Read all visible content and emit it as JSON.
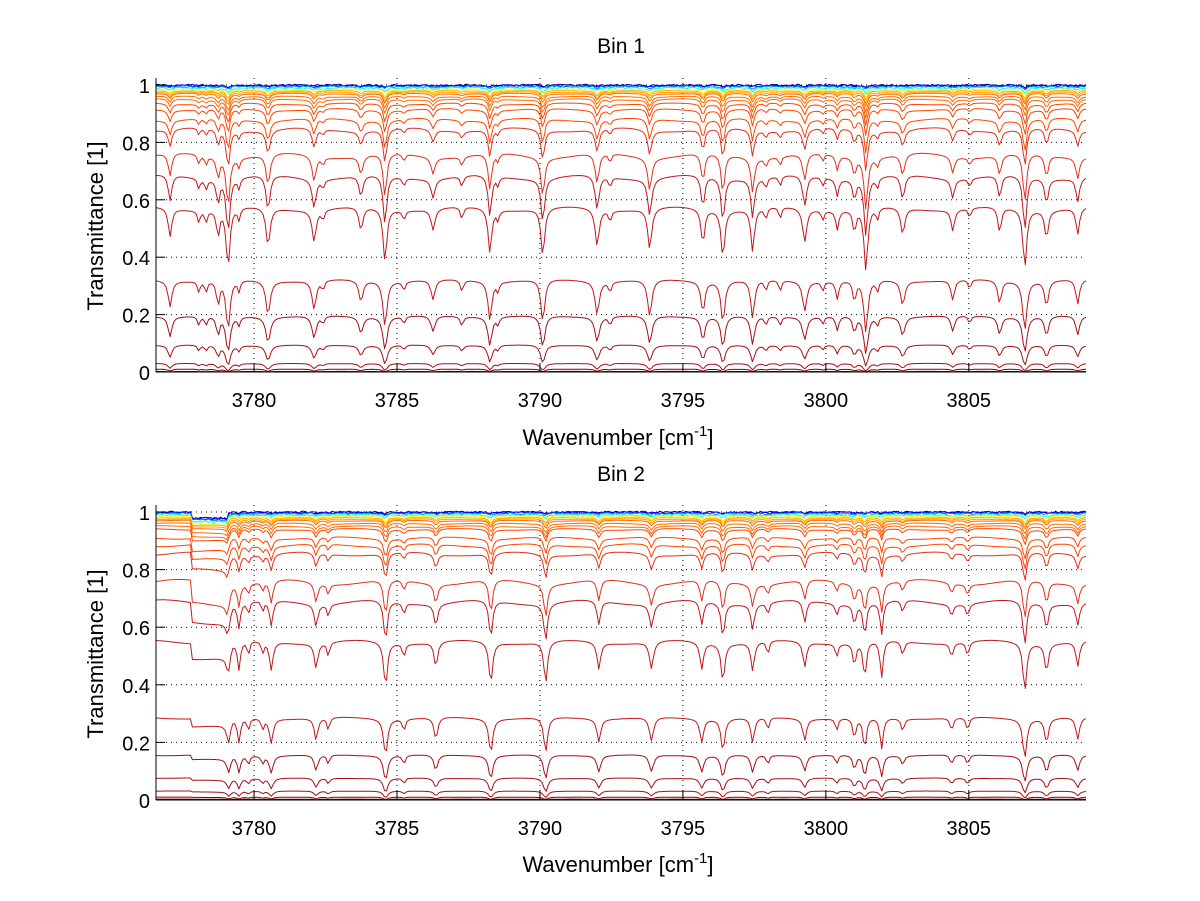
{
  "figure": {
    "colors": {
      "background": "#ffffff",
      "axis": "#000000",
      "colormap": [
        "#00008f",
        "#0000ff",
        "#0080ff",
        "#00ffff",
        "#ffff00",
        "#ffa500",
        "#ff6a00",
        "#ff4500",
        "#e0301e",
        "#c0171b",
        "#a50f15",
        "#800000"
      ]
    }
  },
  "chart_data": [
    {
      "type": "line",
      "title": "Bin 1",
      "xlabel": "Wavenumber [cm",
      "xlabel_superscript": "-1",
      "xlabel_suffix": "]",
      "ylabel": "Transmittance [1]",
      "xlim": [
        3776.57,
        3809.1
      ],
      "ylim": [
        0,
        1.02
      ],
      "xticks": [
        3780,
        3785,
        3790,
        3795,
        3800,
        3805
      ],
      "xtick_labels": [
        "3780",
        "3785",
        "3790",
        "3795",
        "3800",
        "3805"
      ],
      "yticks": [
        0,
        0.2,
        0.4,
        0.6,
        0.8,
        1
      ],
      "ytick_labels": [
        "0",
        "0.2",
        "0.4",
        "0.6",
        "0.8",
        "1"
      ],
      "grid": true,
      "legend": "none",
      "series_model": "T = continuum * exp(-k * sum_j strength_j * lorentz(nu; center_j, width_j)), k = (-ln continuum)^0.8",
      "continuum_levels": [
        1.0,
        0.998,
        0.995,
        0.99,
        0.985,
        0.98,
        0.975,
        0.97,
        0.96,
        0.95,
        0.935,
        0.915,
        0.88,
        0.845,
        0.755,
        0.68,
        0.57,
        0.32,
        0.195,
        0.094,
        0.03,
        0.01,
        0.002
      ],
      "absorption_lines": [
        {
          "center": 3777.06,
          "strength": 0.3,
          "width": 0.07
        },
        {
          "center": 3778.07,
          "strength": 0.12,
          "width": 0.05
        },
        {
          "center": 3778.32,
          "strength": 0.12,
          "width": 0.05
        },
        {
          "center": 3778.74,
          "strength": 0.28,
          "width": 0.06
        },
        {
          "center": 3779.09,
          "strength": 0.7,
          "width": 0.07
        },
        {
          "center": 3779.47,
          "strength": 0.12,
          "width": 0.05
        },
        {
          "center": 3780.49,
          "strength": 0.42,
          "width": 0.08
        },
        {
          "center": 3782.1,
          "strength": 0.34,
          "width": 0.08
        },
        {
          "center": 3782.41,
          "strength": 0.1,
          "width": 0.05
        },
        {
          "center": 3783.74,
          "strength": 0.24,
          "width": 0.08
        },
        {
          "center": 3784.58,
          "strength": 0.62,
          "width": 0.07
        },
        {
          "center": 3785.24,
          "strength": 0.1,
          "width": 0.05
        },
        {
          "center": 3786.26,
          "strength": 0.22,
          "width": 0.08
        },
        {
          "center": 3787.27,
          "strength": 0.12,
          "width": 0.06
        },
        {
          "center": 3788.25,
          "strength": 0.5,
          "width": 0.07
        },
        {
          "center": 3788.53,
          "strength": 0.1,
          "width": 0.05
        },
        {
          "center": 3790.1,
          "strength": 0.55,
          "width": 0.07
        },
        {
          "center": 3792.0,
          "strength": 0.4,
          "width": 0.08
        },
        {
          "center": 3792.45,
          "strength": 0.12,
          "width": 0.05
        },
        {
          "center": 3793.84,
          "strength": 0.45,
          "width": 0.08
        },
        {
          "center": 3795.7,
          "strength": 0.38,
          "width": 0.07
        },
        {
          "center": 3796.4,
          "strength": 0.55,
          "width": 0.07
        },
        {
          "center": 3797.44,
          "strength": 0.48,
          "width": 0.07
        },
        {
          "center": 3797.9,
          "strength": 0.12,
          "width": 0.05
        },
        {
          "center": 3798.4,
          "strength": 0.12,
          "width": 0.05
        },
        {
          "center": 3799.26,
          "strength": 0.36,
          "width": 0.08
        },
        {
          "center": 3799.89,
          "strength": 0.1,
          "width": 0.05
        },
        {
          "center": 3800.4,
          "strength": 0.2,
          "width": 0.06
        },
        {
          "center": 3801.0,
          "strength": 0.24,
          "width": 0.06
        },
        {
          "center": 3801.4,
          "strength": 0.75,
          "width": 0.07
        },
        {
          "center": 3801.8,
          "strength": 0.12,
          "width": 0.05
        },
        {
          "center": 3802.69,
          "strength": 0.28,
          "width": 0.08
        },
        {
          "center": 3804.44,
          "strength": 0.22,
          "width": 0.07
        },
        {
          "center": 3805.03,
          "strength": 0.1,
          "width": 0.05
        },
        {
          "center": 3806.08,
          "strength": 0.26,
          "width": 0.07
        },
        {
          "center": 3806.96,
          "strength": 0.7,
          "width": 0.07
        },
        {
          "center": 3807.72,
          "strength": 0.3,
          "width": 0.07
        },
        {
          "center": 3808.81,
          "strength": 0.28,
          "width": 0.07
        }
      ],
      "step_ranges": []
    },
    {
      "type": "line",
      "title": "Bin 2",
      "xlabel": "Wavenumber [cm",
      "xlabel_superscript": "-1",
      "xlabel_suffix": "]",
      "ylabel": "Transmittance [1]",
      "xlim": [
        3776.57,
        3809.1
      ],
      "ylim": [
        0,
        1.02
      ],
      "xticks": [
        3780,
        3785,
        3790,
        3795,
        3800,
        3805
      ],
      "xtick_labels": [
        "3780",
        "3785",
        "3790",
        "3795",
        "3800",
        "3805"
      ],
      "yticks": [
        0,
        0.2,
        0.4,
        0.6,
        0.8,
        1
      ],
      "ytick_labels": [
        "0",
        "0.2",
        "0.4",
        "0.6",
        "0.8",
        "1"
      ],
      "grid": true,
      "legend": "none",
      "series_model": "T = continuum * exp(-k * sum_j strength_j * lorentz(nu; center_j, width_j)), k = (-ln continuum)^0.8",
      "continuum_levels": [
        1.0,
        0.998,
        0.995,
        0.99,
        0.985,
        0.98,
        0.975,
        0.97,
        0.96,
        0.95,
        0.94,
        0.91,
        0.885,
        0.855,
        0.757,
        0.687,
        0.549,
        0.285,
        0.156,
        0.076,
        0.031,
        0.01,
        0.003
      ],
      "absorption_lines": [
        {
          "center": 3779.12,
          "strength": 0.3,
          "width": 0.06
        },
        {
          "center": 3779.47,
          "strength": 0.3,
          "width": 0.06
        },
        {
          "center": 3779.8,
          "strength": 0.14,
          "width": 0.05
        },
        {
          "center": 3780.3,
          "strength": 0.12,
          "width": 0.05
        },
        {
          "center": 3780.6,
          "strength": 0.3,
          "width": 0.07
        },
        {
          "center": 3782.17,
          "strength": 0.26,
          "width": 0.07
        },
        {
          "center": 3782.6,
          "strength": 0.14,
          "width": 0.05
        },
        {
          "center": 3784.6,
          "strength": 0.5,
          "width": 0.07
        },
        {
          "center": 3785.24,
          "strength": 0.14,
          "width": 0.05
        },
        {
          "center": 3786.36,
          "strength": 0.26,
          "width": 0.07
        },
        {
          "center": 3788.28,
          "strength": 0.46,
          "width": 0.07
        },
        {
          "center": 3790.2,
          "strength": 0.46,
          "width": 0.07
        },
        {
          "center": 3792.06,
          "strength": 0.28,
          "width": 0.07
        },
        {
          "center": 3793.9,
          "strength": 0.28,
          "width": 0.08
        },
        {
          "center": 3795.66,
          "strength": 0.28,
          "width": 0.07
        },
        {
          "center": 3796.4,
          "strength": 0.42,
          "width": 0.07
        },
        {
          "center": 3797.44,
          "strength": 0.3,
          "width": 0.07
        },
        {
          "center": 3797.97,
          "strength": 0.14,
          "width": 0.05
        },
        {
          "center": 3799.26,
          "strength": 0.26,
          "width": 0.07
        },
        {
          "center": 3800.38,
          "strength": 0.14,
          "width": 0.05
        },
        {
          "center": 3801.0,
          "strength": 0.24,
          "width": 0.06
        },
        {
          "center": 3801.36,
          "strength": 0.4,
          "width": 0.06
        },
        {
          "center": 3801.95,
          "strength": 0.4,
          "width": 0.06
        },
        {
          "center": 3802.69,
          "strength": 0.14,
          "width": 0.06
        },
        {
          "center": 3804.4,
          "strength": 0.14,
          "width": 0.06
        },
        {
          "center": 3804.96,
          "strength": 0.14,
          "width": 0.06
        },
        {
          "center": 3806.96,
          "strength": 0.55,
          "width": 0.07
        },
        {
          "center": 3807.72,
          "strength": 0.3,
          "width": 0.07
        },
        {
          "center": 3808.81,
          "strength": 0.26,
          "width": 0.07
        }
      ],
      "step_ranges": [
        {
          "from": 3777.83,
          "to": 3779.05,
          "factor": 0.9
        }
      ]
    }
  ]
}
